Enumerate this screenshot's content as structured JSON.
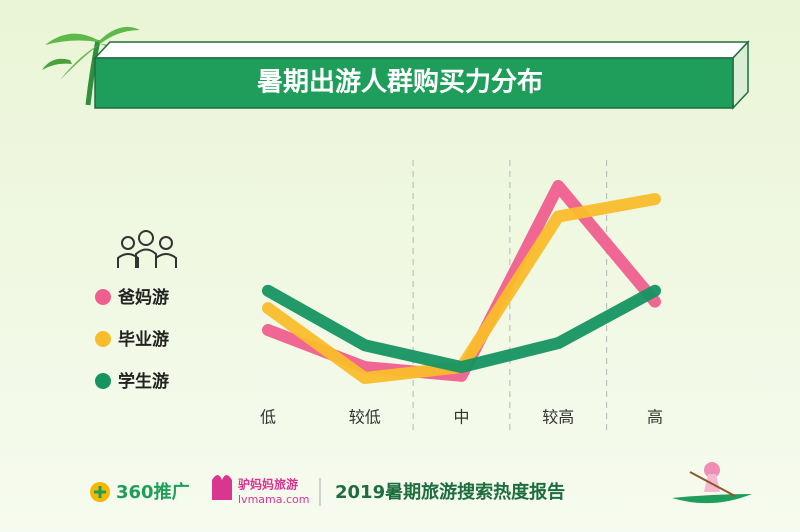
{
  "chart_data": {
    "type": "line",
    "title": "暑期出游人群购买力分布",
    "categories": [
      "低",
      "较低",
      "中",
      "较高",
      "高"
    ],
    "series": [
      {
        "name": "爸妈游",
        "color": "#ee5f8d",
        "values": [
          32,
          15,
          11,
          98,
          45
        ]
      },
      {
        "name": "毕业游",
        "color": "#f9bd2b",
        "values": [
          42,
          10,
          15,
          84,
          92
        ]
      },
      {
        "name": "学生游",
        "color": "#159462",
        "values": [
          50,
          25,
          15,
          26,
          50
        ]
      }
    ]
  },
  "footer": {
    "brand": "360推广",
    "partner": "驴妈妈旅游",
    "partner_url": "lvmama.com",
    "report": "2019暑期旅游搜索热度报告"
  }
}
